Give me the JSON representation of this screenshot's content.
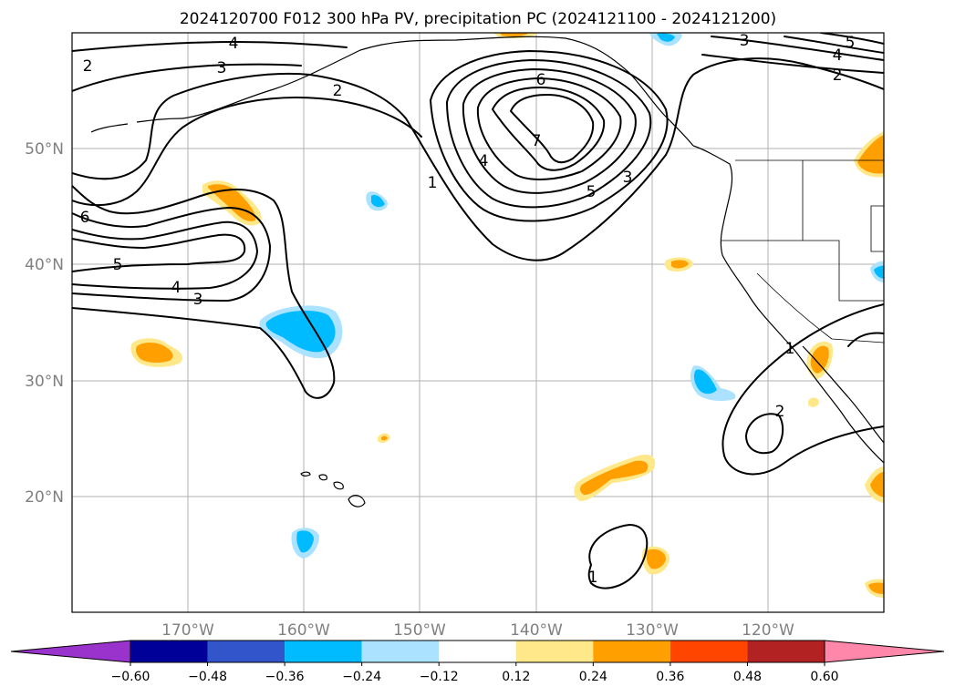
{
  "title": "2024120700 F012 300 hPa PV, precipitation PC (2024121100 - 2024121200)",
  "longitude_labels": [
    "170°W",
    "160°W",
    "150°W",
    "140°W",
    "130°W",
    "120°W"
  ],
  "latitude_labels": [
    "50°N",
    "40°N",
    "30°N",
    "20°N"
  ],
  "pv_contour_labels": [
    "4",
    "3",
    "2",
    "2",
    "6",
    "5",
    "4",
    "3",
    "7",
    "6",
    "5",
    "4",
    "3",
    "1",
    "3",
    "4",
    "5",
    "2",
    "1",
    "2",
    "1"
  ],
  "colorbar": {
    "tick_labels": [
      "−0.60",
      "−0.48",
      "−0.36",
      "−0.24",
      "−0.12",
      "0.12",
      "0.24",
      "0.36",
      "0.48",
      "0.60"
    ],
    "colors": [
      "#9933cc",
      "#000099",
      "#3355cc",
      "#00bbff",
      "#aae2ff",
      "#ffffff",
      "#ffe88a",
      "#ffa000",
      "#ff4500",
      "#b22222",
      "#ff88aa"
    ]
  },
  "colors": {
    "axis_labels": "#808080",
    "gridlines": "#b0b0b0",
    "contours": "#000000"
  }
}
